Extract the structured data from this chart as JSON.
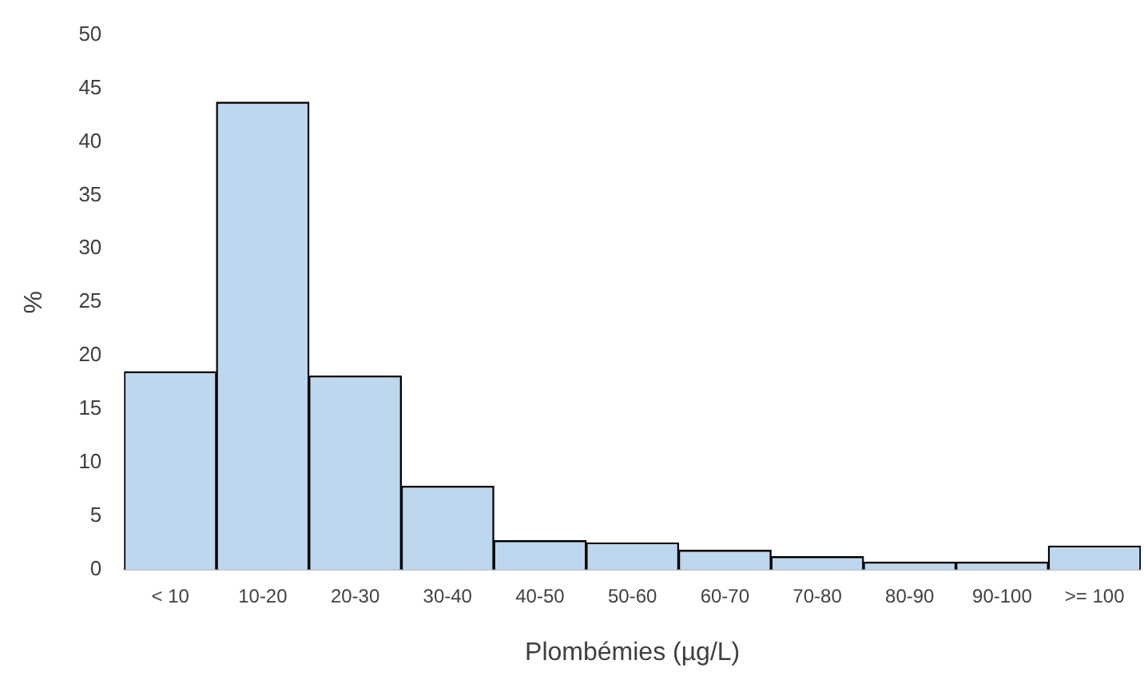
{
  "chart_data": {
    "type": "bar",
    "xlabel": "Plombémies (µg/L)",
    "ylabel": "%",
    "categories": [
      "< 10",
      "10-20",
      "20-30",
      "30-40",
      "40-50",
      "50-60",
      "60-70",
      "70-80",
      "80-90",
      "90-100",
      ">= 100"
    ],
    "values": [
      18.5,
      43.7,
      18.1,
      7.8,
      2.7,
      2.5,
      1.8,
      1.2,
      0.7,
      0.7,
      2.2
    ],
    "color": "#bdd7ee",
    "ylim": [
      0,
      50
    ],
    "yticks": [
      0,
      5,
      10,
      15,
      20,
      25,
      30,
      35,
      40,
      45,
      50
    ],
    "grid": false,
    "legend": false
  }
}
